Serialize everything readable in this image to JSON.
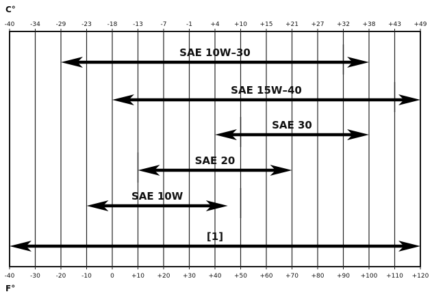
{
  "chart_data": {
    "type": "range-arrows",
    "top_axis": {
      "unit_label": "C°",
      "ticks": [
        "-40",
        "-34",
        "-29",
        "-23",
        "-18",
        "-13",
        "-7",
        "-1",
        "+4",
        "+10",
        "+15",
        "+21",
        "+27",
        "+32",
        "+38",
        "+43",
        "+49"
      ]
    },
    "bottom_axis": {
      "unit_label": "F°",
      "ticks": [
        "-40",
        "-30",
        "-20",
        "-10",
        "0",
        "+10",
        "+20",
        "+30",
        "+40",
        "+50",
        "+60",
        "+70",
        "+80",
        "+90",
        "+100",
        "+110",
        "+120"
      ]
    },
    "x_unit": "F",
    "xlim": [
      -40,
      120
    ],
    "series": [
      {
        "name": "SAE 10W–30",
        "range_f": [
          -20,
          100
        ],
        "guide_f": 90
      },
      {
        "name": "SAE 15W–40",
        "range_f": [
          0,
          120
        ],
        "guide_f": 110
      },
      {
        "name": "SAE 30",
        "range_f": [
          40,
          100
        ],
        "guide_f": 50
      },
      {
        "name": "SAE 20",
        "range_f": [
          10,
          70
        ],
        "guide_f": 10
      },
      {
        "name": "SAE 10W",
        "range_f": [
          -10,
          45
        ],
        "guide_f": 50
      },
      {
        "name": "[1]",
        "range_f": [
          -40,
          120
        ],
        "guide_f": null
      }
    ]
  }
}
